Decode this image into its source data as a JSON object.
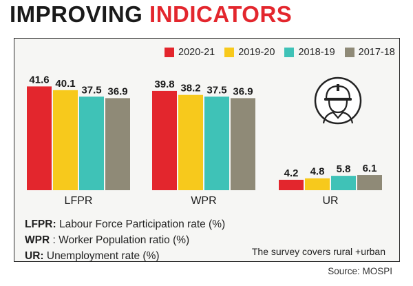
{
  "title": {
    "part1": "IMPROVING",
    "part2": "INDICATORS"
  },
  "colors": {
    "2020-21": "#e3262d",
    "2019-20": "#f7c91c",
    "2018-19": "#3fc2b7",
    "2017-18": "#8f8a77"
  },
  "icons": {
    "worker": "construction-worker-icon"
  },
  "chart_data": {
    "type": "bar",
    "categories": [
      "LFPR",
      "WPR",
      "UR"
    ],
    "series": [
      {
        "name": "2020-21",
        "values": [
          41.6,
          39.8,
          4.2
        ]
      },
      {
        "name": "2019-20",
        "values": [
          40.1,
          38.2,
          4.8
        ]
      },
      {
        "name": "2018-19",
        "values": [
          37.5,
          37.5,
          5.8
        ]
      },
      {
        "name": "2017-18",
        "values": [
          36.9,
          36.9,
          6.1
        ]
      }
    ],
    "legend_position": "top-right",
    "grid": false
  },
  "notes": [
    {
      "abbr": "LFPR:",
      "text": " Labour Force Participation rate (%)"
    },
    {
      "abbr": "WPR",
      "text": " : Worker Population ratio (%)"
    },
    {
      "abbr": "UR:",
      "text": " Unemployment rate (%)"
    }
  ],
  "survey_note": "The survey covers rural +urban",
  "source": "Source: MOSPI"
}
